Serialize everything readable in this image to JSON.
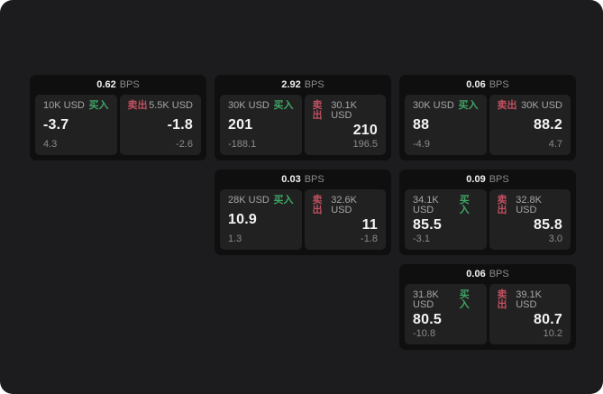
{
  "labels": {
    "bps": "BPS",
    "buy": "买入",
    "sell": "卖出"
  },
  "colors": {
    "buy_green": "#40a566",
    "sell_red": "#c05060"
  },
  "cards": [
    {
      "bps": "0.62",
      "buy": {
        "amount": "10K USD",
        "value": "-3.7",
        "sub": "4.3"
      },
      "sell": {
        "amount": "5.5K USD",
        "value": "-1.8",
        "sub": "-2.6"
      }
    },
    {
      "bps": "2.92",
      "buy": {
        "amount": "30K USD",
        "value": "201",
        "sub": "-188.1"
      },
      "sell": {
        "amount": "30.1K USD",
        "value": "210",
        "sub": "196.5"
      }
    },
    {
      "bps": "0.06",
      "buy": {
        "amount": "30K USD",
        "value": "88",
        "sub": "-4.9"
      },
      "sell": {
        "amount": "30K USD",
        "value": "88.2",
        "sub": "4.7"
      }
    },
    {
      "bps": "0.03",
      "buy": {
        "amount": "28K USD",
        "value": "10.9",
        "sub": "1.3"
      },
      "sell": {
        "amount": "32.6K USD",
        "value": "11",
        "sub": "-1.8"
      }
    },
    {
      "bps": "0.09",
      "buy": {
        "amount": "34.1K USD",
        "value": "85.5",
        "sub": "-3.1"
      },
      "sell": {
        "amount": "32.8K USD",
        "value": "85.8",
        "sub": "3.0"
      }
    },
    {
      "bps": "0.06",
      "buy": {
        "amount": "31.8K USD",
        "value": "80.5",
        "sub": "-10.8"
      },
      "sell": {
        "amount": "39.1K USD",
        "value": "80.7",
        "sub": "10.2"
      }
    }
  ]
}
